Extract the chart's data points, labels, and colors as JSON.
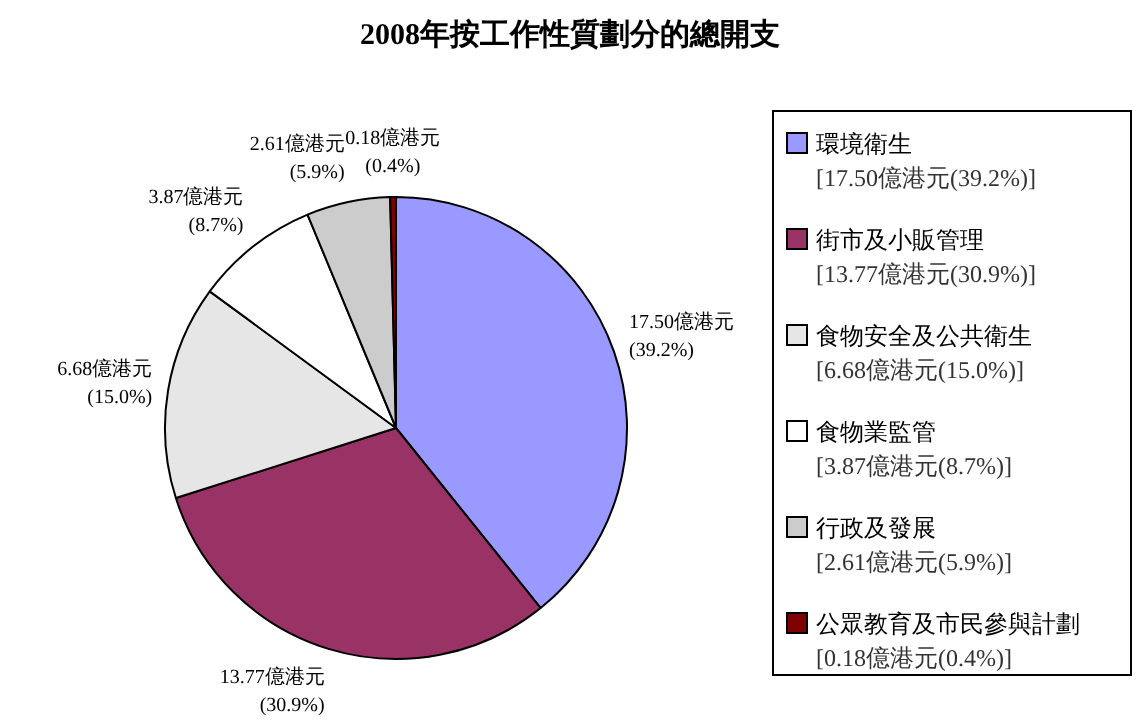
{
  "chart_data": {
    "type": "pie",
    "title": "2008年按工作性質劃分的總開支",
    "categories": [
      "環境衛生\n[17.50億港元(39.2%)]",
      "街市及小販管理\n[13.77億港元(30.9%)]",
      "食物安全及公共衛生\n[6.68億港元(15.0%)]",
      "食物業監管\n[3.87億港元(8.7%)]",
      "行政及發展\n[2.61億港元(5.9%)]",
      "公眾教育及市民參與計劃\n[0.18億港元(0.4%)]"
    ],
    "values": [
      17.5,
      13.77,
      6.68,
      3.87,
      2.61,
      0.18
    ],
    "value_labels": [
      "17.50億港元\n(39.2%)",
      "13.77億港元\n(30.9%)",
      "6.68億港元\n(15.0%)",
      "3.87億港元\n(8.7%)",
      "2.61億港元\n(5.9%)",
      "0.18億港元\n(0.4%)"
    ],
    "colors": [
      "#9999ff",
      "#993366",
      "#e6e6e6",
      "#ffffff",
      "#cccccc",
      "#800000"
    ],
    "legend": "right"
  }
}
